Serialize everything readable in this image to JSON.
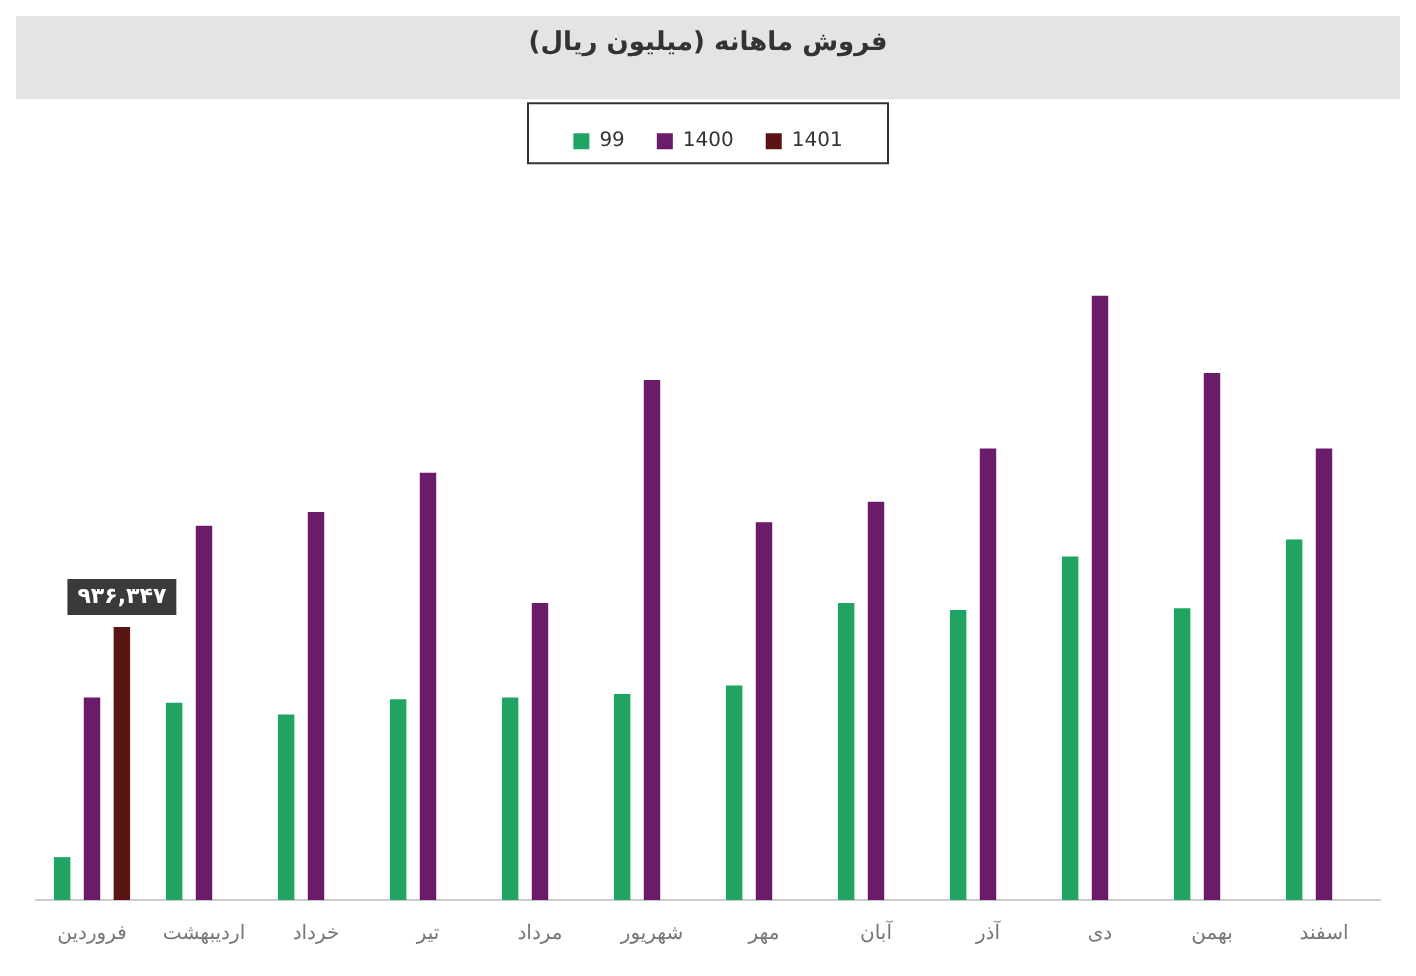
{
  "chart_data": {
    "type": "bar",
    "title": "فروش ماهانه (میلیون ریال)",
    "legend": "top",
    "grid": false,
    "categories": [
      "فروردین",
      "اردیبهشت",
      "خرداد",
      "تیر",
      "مرداد",
      "شهریور",
      "مهر",
      "آبان",
      "آذر",
      "دی",
      "بهمن",
      "اسفند"
    ],
    "series": [
      {
        "name": "99",
        "color": "#1fa463",
        "values": [
          147000,
          677000,
          636000,
          689000,
          695000,
          707000,
          736000,
          1019000,
          995000,
          1178000,
          1001000,
          1237000
        ]
      },
      {
        "name": "1400",
        "color": "#6a1b6a",
        "values": [
          695000,
          1284000,
          1331000,
          1466000,
          1019000,
          1784000,
          1296000,
          1366000,
          1549000,
          2073000,
          1808000,
          1549000
        ]
      },
      {
        "name": "1401",
        "color": "#5a1414",
        "values": [
          936347,
          null,
          null,
          null,
          null,
          null,
          null,
          null,
          null,
          null,
          null,
          null
        ],
        "value_labels": [
          "۹۳۶,۳۴۷",
          null,
          null,
          null,
          null,
          null,
          null,
          null,
          null,
          null,
          null,
          null
        ]
      }
    ]
  }
}
